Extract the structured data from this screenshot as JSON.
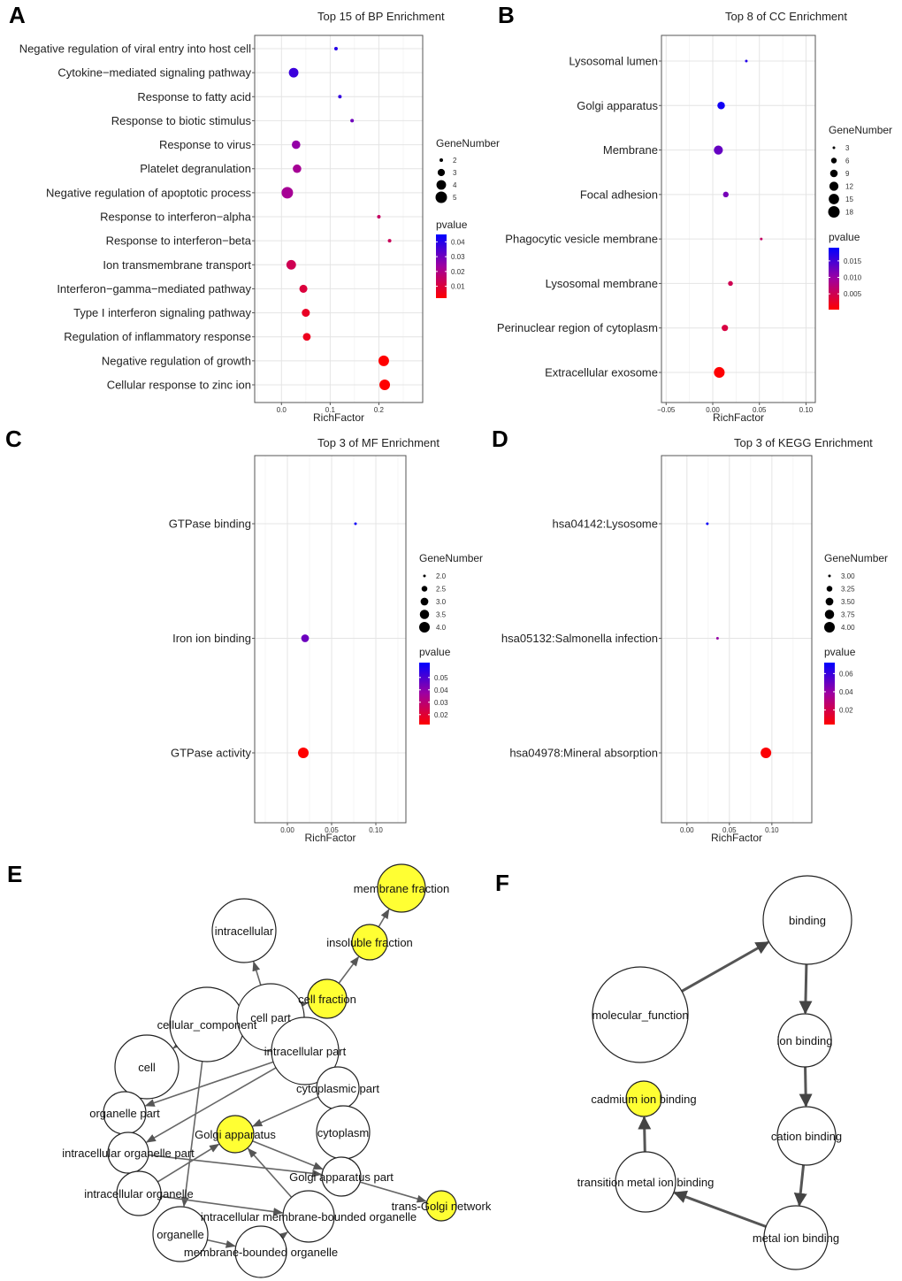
{
  "panels": [
    "A",
    "B",
    "C",
    "D",
    "E",
    "F"
  ],
  "chart_data": [
    {
      "type": "scatter",
      "panel": "A",
      "title": "Top 15 of BP Enrichment",
      "xlabel": "RichFactor",
      "xlim": [
        -0.055,
        0.29
      ],
      "xticks": [
        0.0,
        0.1,
        0.2
      ],
      "tick_labels": [
        "0.0",
        "0.1",
        "0.2"
      ],
      "categories": [
        "Negative regulation of viral entry into host cell",
        "Cytokine−mediated signaling pathway",
        "Response to fatty acid",
        "Response to biotic stimulus",
        "Response to virus",
        "Platelet degranulation",
        "Negative regulation of apoptotic process",
        "Response to interferon−alpha",
        "Response to interferon−beta",
        "Ion transmembrane transport",
        "Interferon−gamma−mediated pathway",
        "Type I interferon signaling pathway",
        "Regulation of inflammatory response",
        "Negative regulation of growth",
        "Cellular response to zinc ion"
      ],
      "points": [
        {
          "category": "Negative regulation of viral entry into host cell",
          "richfactor": 0.112,
          "genes": 2,
          "pvalue": 0.04
        },
        {
          "category": "Cytokine−mediated signaling pathway",
          "richfactor": 0.025,
          "genes": 4,
          "pvalue": 0.037
        },
        {
          "category": "Response to fatty acid",
          "richfactor": 0.12,
          "genes": 2,
          "pvalue": 0.038
        },
        {
          "category": "Response to biotic stimulus",
          "richfactor": 0.145,
          "genes": 2,
          "pvalue": 0.03
        },
        {
          "category": "Response to virus",
          "richfactor": 0.03,
          "genes": 3.5,
          "pvalue": 0.025
        },
        {
          "category": "Platelet degranulation",
          "richfactor": 0.032,
          "genes": 3.5,
          "pvalue": 0.022
        },
        {
          "category": "Negative regulation of apoptotic process",
          "richfactor": 0.012,
          "genes": 5,
          "pvalue": 0.022
        },
        {
          "category": "Response to interferon−alpha",
          "richfactor": 0.2,
          "genes": 2,
          "pvalue": 0.015
        },
        {
          "category": "Response to interferon−beta",
          "richfactor": 0.222,
          "genes": 2,
          "pvalue": 0.014
        },
        {
          "category": "Ion transmembrane transport",
          "richfactor": 0.02,
          "genes": 4,
          "pvalue": 0.013
        },
        {
          "category": "Interferon−gamma−mediated pathway",
          "richfactor": 0.045,
          "genes": 3.3,
          "pvalue": 0.01
        },
        {
          "category": "Type I interferon signaling pathway",
          "richfactor": 0.05,
          "genes": 3.3,
          "pvalue": 0.007
        },
        {
          "category": "Regulation of inflammatory response",
          "richfactor": 0.052,
          "genes": 3.2,
          "pvalue": 0.006
        },
        {
          "category": "Negative regulation of growth",
          "richfactor": 0.21,
          "genes": 4.5,
          "pvalue": 0.002
        },
        {
          "category": "Cellular response to zinc ion",
          "richfactor": 0.212,
          "genes": 4.5,
          "pvalue": 0.001
        }
      ],
      "size_legend": {
        "title": "GeneNumber",
        "values": [
          2,
          3,
          4,
          5
        ],
        "labels": [
          "2",
          "3",
          "4",
          "5"
        ]
      },
      "color_legend": {
        "title": "pvalue",
        "range": [
          0.002,
          0.045
        ],
        "ticks": [
          0.01,
          0.02,
          0.03,
          0.04
        ],
        "labels": [
          "0.01",
          "0.02",
          "0.03",
          "0.04"
        ]
      }
    },
    {
      "type": "scatter",
      "panel": "B",
      "title": "Top 8 of CC Enrichment",
      "xlabel": "RichFactor",
      "xlim": [
        -0.055,
        0.11
      ],
      "xticks": [
        -0.05,
        0.0,
        0.05,
        0.1
      ],
      "tick_labels": [
        "−0.05",
        "0.00",
        "0.05",
        "0.10"
      ],
      "categories": [
        "Lysosomal lumen",
        "Golgi apparatus",
        "Membrane",
        "Focal adhesion",
        "Phagocytic vesicle membrane",
        "Lysosomal membrane",
        "Perinuclear region of cytoplasm",
        "Extracellular exosome"
      ],
      "points": [
        {
          "category": "Lysosomal lumen",
          "richfactor": 0.036,
          "genes": 3,
          "pvalue": 0.017
        },
        {
          "category": "Golgi apparatus",
          "richfactor": 0.009,
          "genes": 9,
          "pvalue": 0.018
        },
        {
          "category": "Membrane",
          "richfactor": 0.006,
          "genes": 12,
          "pvalue": 0.013
        },
        {
          "category": "Focal adhesion",
          "richfactor": 0.014,
          "genes": 6,
          "pvalue": 0.012
        },
        {
          "category": "Phagocytic vesicle membrane",
          "richfactor": 0.052,
          "genes": 3,
          "pvalue": 0.006
        },
        {
          "category": "Lysosomal membrane",
          "richfactor": 0.019,
          "genes": 5,
          "pvalue": 0.005
        },
        {
          "category": "Perinuclear region of cytoplasm",
          "richfactor": 0.013,
          "genes": 7,
          "pvalue": 0.004
        },
        {
          "category": "Extracellular exosome",
          "richfactor": 0.007,
          "genes": 16,
          "pvalue": 0.0003
        }
      ],
      "size_legend": {
        "title": "GeneNumber",
        "values": [
          3,
          6,
          9,
          12,
          15,
          18
        ],
        "labels": [
          "3",
          "6",
          "9",
          "12",
          "15",
          "18"
        ]
      },
      "color_legend": {
        "title": "pvalue",
        "range": [
          0.0002,
          0.019
        ],
        "ticks": [
          0.005,
          0.01,
          0.015
        ],
        "labels": [
          "0.005",
          "0.010",
          "0.015"
        ]
      }
    },
    {
      "type": "scatter",
      "panel": "C",
      "title": "Top 3 of MF Enrichment",
      "xlabel": "RichFactor",
      "xlim": [
        -0.037,
        0.134
      ],
      "xticks": [
        0.0,
        0.05,
        0.1
      ],
      "tick_labels": [
        "0.00",
        "0.05",
        "0.10"
      ],
      "categories": [
        "GTPase binding",
        "Iron ion binding",
        "GTPase activity"
      ],
      "points": [
        {
          "category": "GTPase binding",
          "richfactor": 0.077,
          "genes": 2,
          "pvalue": 0.06
        },
        {
          "category": "Iron ion binding",
          "richfactor": 0.02,
          "genes": 3,
          "pvalue": 0.045
        },
        {
          "category": "GTPase activity",
          "richfactor": 0.018,
          "genes": 4,
          "pvalue": 0.012
        }
      ],
      "size_legend": {
        "title": "GeneNumber",
        "values": [
          2.0,
          2.5,
          3.0,
          3.5,
          4.0
        ],
        "labels": [
          "2.0",
          "2.5",
          "3.0",
          "3.5",
          "4.0"
        ]
      },
      "color_legend": {
        "title": "pvalue",
        "range": [
          0.012,
          0.062
        ],
        "ticks": [
          0.02,
          0.03,
          0.04,
          0.05
        ],
        "labels": [
          "0.02",
          "0.03",
          "0.04",
          "0.05"
        ]
      }
    },
    {
      "type": "scatter",
      "panel": "D",
      "title": "Top 3 of KEGG Enrichment",
      "xlabel": "RichFactor",
      "xlim": [
        -0.03,
        0.147
      ],
      "xticks": [
        0.0,
        0.05,
        0.1
      ],
      "tick_labels": [
        "0.00",
        "0.05",
        "0.10"
      ],
      "categories": [
        "hsa04142:Lysosome",
        "hsa05132:Salmonella infection",
        "hsa04978:Mineral absorption"
      ],
      "points": [
        {
          "category": "hsa04142:Lysosome",
          "richfactor": 0.024,
          "genes": 3,
          "pvalue": 0.07
        },
        {
          "category": "hsa05132:Salmonella infection",
          "richfactor": 0.036,
          "genes": 3,
          "pvalue": 0.04
        },
        {
          "category": "hsa04978:Mineral absorption",
          "richfactor": 0.093,
          "genes": 4,
          "pvalue": 0.005
        }
      ],
      "size_legend": {
        "title": "GeneNumber",
        "values": [
          3.0,
          3.25,
          3.5,
          3.75,
          4.0
        ],
        "labels": [
          "3.00",
          "3.25",
          "3.50",
          "3.75",
          "4.00"
        ]
      },
      "color_legend": {
        "title": "pvalue",
        "range": [
          0.004,
          0.072
        ],
        "ticks": [
          0.02,
          0.04,
          0.06
        ],
        "labels": [
          "0.02",
          "0.04",
          "0.06"
        ]
      }
    }
  ],
  "networks": {
    "E": {
      "nodes": [
        {
          "id": "intracellular",
          "label": "intracellular",
          "highlight": false
        },
        {
          "id": "membrane_fraction",
          "label": "membrane fraction",
          "highlight": true
        },
        {
          "id": "insoluble_fraction",
          "label": "insoluble fraction",
          "highlight": true
        },
        {
          "id": "cell_fraction",
          "label": "cell fraction",
          "highlight": true
        },
        {
          "id": "cellular_component",
          "label": "cellular_component",
          "highlight": false
        },
        {
          "id": "cell_part",
          "label": "cell part",
          "highlight": false
        },
        {
          "id": "intracellular_part",
          "label": "intracellular part",
          "highlight": false
        },
        {
          "id": "cell",
          "label": "cell",
          "highlight": false
        },
        {
          "id": "cytoplasmic_part",
          "label": "cytoplasmic part",
          "highlight": false
        },
        {
          "id": "organelle_part",
          "label": "organelle part",
          "highlight": false
        },
        {
          "id": "golgi_apparatus",
          "label": "Golgi apparatus",
          "highlight": true
        },
        {
          "id": "cytoplasm",
          "label": "cytoplasm",
          "highlight": false
        },
        {
          "id": "intracellular_organelle_part",
          "label": "intracellular organelle part",
          "highlight": false
        },
        {
          "id": "golgi_apparatus_part",
          "label": "Golgi apparatus part",
          "highlight": false
        },
        {
          "id": "trans_golgi_network",
          "label": "trans-Golgi network",
          "highlight": true
        },
        {
          "id": "intracellular_organelle",
          "label": "intracellular organelle",
          "highlight": false
        },
        {
          "id": "intracellular_membrane_bounded_organelle",
          "label": "intracellular membrane-bounded organelle",
          "highlight": false
        },
        {
          "id": "organelle",
          "label": "organelle",
          "highlight": false
        },
        {
          "id": "membrane_bounded_organelle",
          "label": "membrane-bounded organelle",
          "highlight": false
        }
      ],
      "edges": [
        [
          "cell_part",
          "intracellular"
        ],
        [
          "cell_fraction",
          "insoluble_fraction"
        ],
        [
          "insoluble_fraction",
          "membrane_fraction"
        ],
        [
          "cellular_component",
          "cell"
        ],
        [
          "cellular_component",
          "cell_part"
        ],
        [
          "cellular_component",
          "organelle"
        ],
        [
          "cellular_component",
          "cell_fraction"
        ],
        [
          "intracellular_part",
          "organelle_part"
        ],
        [
          "intracellular_part",
          "intracellular_organelle_part"
        ],
        [
          "intracellular_part",
          "cytoplasmic_part"
        ],
        [
          "cytoplasmic_part",
          "golgi_apparatus"
        ],
        [
          "golgi_apparatus",
          "golgi_apparatus_part"
        ],
        [
          "golgi_apparatus_part",
          "trans_golgi_network"
        ],
        [
          "intracellular_organelle",
          "golgi_apparatus"
        ],
        [
          "intracellular_organelle",
          "intracellular_membrane_bounded_organelle"
        ],
        [
          "intracellular_membrane_bounded_organelle",
          "golgi_apparatus"
        ],
        [
          "organelle",
          "membrane_bounded_organelle"
        ],
        [
          "membrane_bounded_organelle",
          "intracellular_membrane_bounded_organelle"
        ],
        [
          "intracellular_organelle_part",
          "golgi_apparatus_part"
        ],
        [
          "cytoplasm",
          "golgi_apparatus_part"
        ],
        [
          "organelle_part",
          "intracellular_organelle_part"
        ]
      ]
    },
    "F": {
      "nodes": [
        {
          "id": "binding",
          "label": "binding",
          "highlight": false
        },
        {
          "id": "molecular_function",
          "label": "molecular_function",
          "highlight": false
        },
        {
          "id": "ion_binding",
          "label": "ion binding",
          "highlight": false
        },
        {
          "id": "cadmium_ion_binding",
          "label": "cadmium ion binding",
          "highlight": true
        },
        {
          "id": "cation_binding",
          "label": "cation binding",
          "highlight": false
        },
        {
          "id": "transition_metal_ion_binding",
          "label": "transition metal ion binding",
          "highlight": false
        },
        {
          "id": "metal_ion_binding",
          "label": "metal ion binding",
          "highlight": false
        }
      ],
      "edges": [
        [
          "molecular_function",
          "binding"
        ],
        [
          "binding",
          "ion_binding"
        ],
        [
          "ion_binding",
          "cation_binding"
        ],
        [
          "cation_binding",
          "metal_ion_binding"
        ],
        [
          "metal_ion_binding",
          "transition_metal_ion_binding"
        ],
        [
          "transition_metal_ion_binding",
          "cadmium_ion_binding"
        ]
      ]
    }
  }
}
